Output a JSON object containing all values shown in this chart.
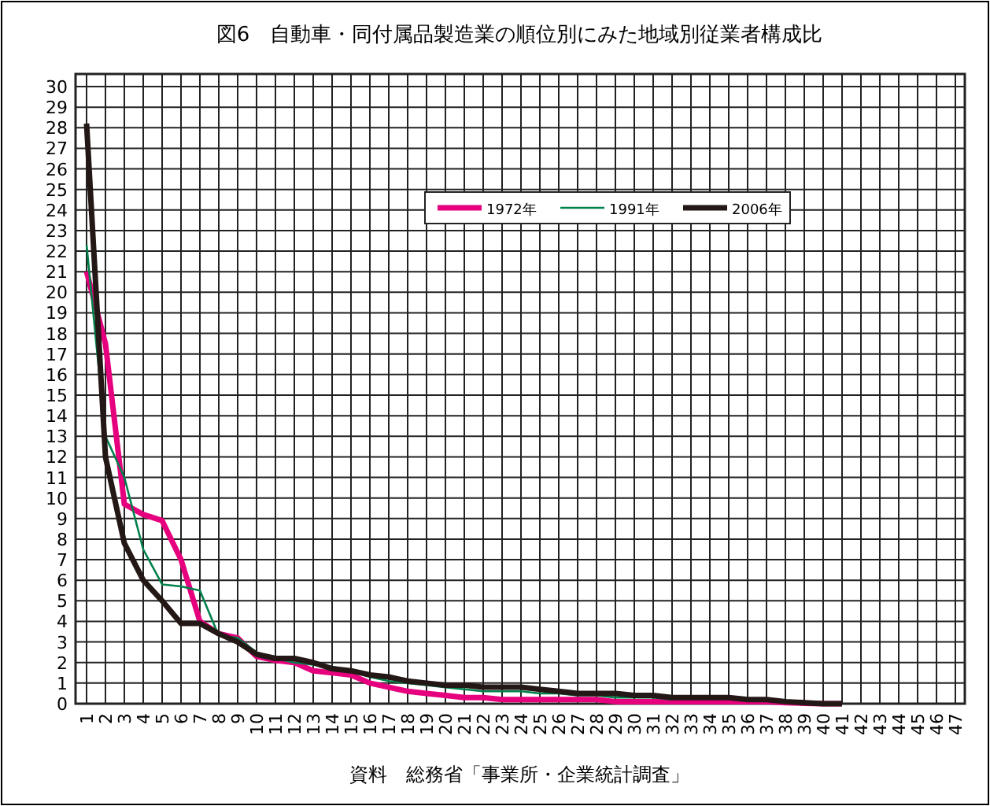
{
  "chart_data": {
    "type": "line",
    "title": "図6　自動車・同付属品製造業の順位別にみた地域別従業者構成比",
    "annotations": [
      "資料　総務省「事業所・企業統計調査」"
    ],
    "categories": [
      "1",
      "2",
      "3",
      "4",
      "5",
      "6",
      "7",
      "8",
      "9",
      "10",
      "11",
      "12",
      "13",
      "14",
      "15",
      "16",
      "17",
      "18",
      "19",
      "20",
      "21",
      "22",
      "23",
      "24",
      "25",
      "26",
      "27",
      "28",
      "29",
      "30",
      "31",
      "32",
      "33",
      "34",
      "35",
      "36",
      "37",
      "38",
      "39",
      "40",
      "41",
      "42",
      "43",
      "44",
      "45",
      "46",
      "47"
    ],
    "series": [
      {
        "name": "1972年",
        "color": "#e6007e",
        "values": [
          21,
          17.5,
          9.7,
          9.2,
          8.9,
          7,
          4,
          3.4,
          3.2,
          2.3,
          2.1,
          2.0,
          1.6,
          1.5,
          1.4,
          1.0,
          0.8,
          0.6,
          0.5,
          0.4,
          0.3,
          0.3,
          0.2,
          0.2,
          0.2,
          0.2,
          0.2,
          0.2,
          0.1,
          0.1,
          0.1,
          0.1,
          0.1,
          0.1,
          0.1,
          0.1,
          0.1,
          0.05,
          0.02,
          0,
          0,
          null,
          null,
          null,
          null,
          null,
          null
        ]
      },
      {
        "name": "1991年",
        "color": "#00804a",
        "values": [
          22.3,
          13,
          11,
          7.5,
          5.8,
          5.7,
          5.5,
          3.3,
          3.2,
          2.5,
          2.2,
          2.0,
          1.9,
          1.8,
          1.6,
          1.3,
          1.1,
          1.0,
          0.9,
          0.8,
          0.7,
          0.6,
          0.6,
          0.6,
          0.5,
          0.5,
          0.4,
          0.4,
          0.3,
          0.3,
          0.3,
          0.2,
          null,
          null,
          null,
          null,
          null,
          null,
          null,
          null,
          null,
          null,
          null,
          null,
          null,
          null,
          null
        ]
      },
      {
        "name": "2006年",
        "color": "#231815",
        "values": [
          28.2,
          12,
          7.8,
          6,
          5,
          3.9,
          3.9,
          3.4,
          3.0,
          2.4,
          2.2,
          2.2,
          2.0,
          1.7,
          1.6,
          1.4,
          1.3,
          1.1,
          1.0,
          0.9,
          0.9,
          0.8,
          0.8,
          0.8,
          0.7,
          0.6,
          0.5,
          0.5,
          0.5,
          0.4,
          0.4,
          0.3,
          0.3,
          0.3,
          0.3,
          0.2,
          0.2,
          0.1,
          0.05,
          0,
          0,
          null,
          null,
          null,
          null,
          null,
          null
        ]
      }
    ],
    "ylim": [
      0,
      30
    ],
    "yticks": [
      0,
      1,
      2,
      3,
      4,
      5,
      6,
      7,
      8,
      9,
      10,
      11,
      12,
      13,
      14,
      15,
      16,
      17,
      18,
      19,
      20,
      21,
      22,
      23,
      24,
      25,
      26,
      27,
      28,
      29,
      30
    ],
    "grid": true,
    "legend": "top"
  }
}
